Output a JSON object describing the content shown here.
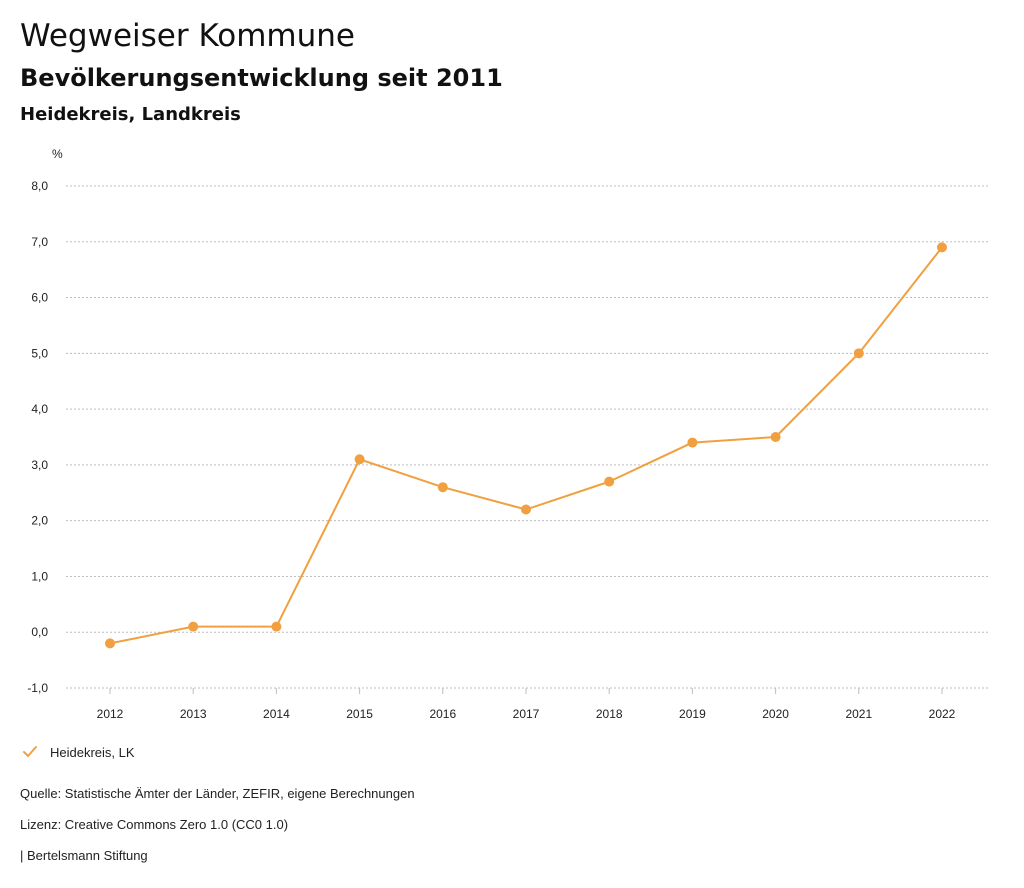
{
  "header": {
    "title": "Wegweiser Kommune",
    "subtitle": "Bevölkerungsentwicklung seit 2011",
    "region": "Heidekreis, Landkreis"
  },
  "chart_data": {
    "type": "line",
    "title": "Bevölkerungsentwicklung seit 2011",
    "xlabel": "",
    "ylabel": "%",
    "x": [
      "2012",
      "2013",
      "2014",
      "2015",
      "2016",
      "2017",
      "2018",
      "2019",
      "2020",
      "2021",
      "2022"
    ],
    "series": [
      {
        "name": "Heidekreis, LK",
        "color": "#f0a040",
        "values": [
          -0.2,
          0.1,
          0.1,
          3.1,
          2.6,
          2.2,
          2.7,
          3.4,
          3.5,
          5.0,
          6.9
        ]
      }
    ],
    "ylim": [
      -1.0,
      8.0
    ],
    "yticks": [
      -1.0,
      0.0,
      1.0,
      2.0,
      3.0,
      4.0,
      5.0,
      6.0,
      7.0,
      8.0
    ],
    "ytick_labels": [
      "-1,0",
      "0,0",
      "1,0",
      "2,0",
      "3,0",
      "4,0",
      "5,0",
      "6,0",
      "7,0",
      "8,0"
    ],
    "grid": true,
    "legend_position": "bottom-left"
  },
  "legend": {
    "label": "Heidekreis, LK",
    "icon": "check-icon"
  },
  "footer": {
    "source": "Quelle: Statistische Ämter der Länder, ZEFIR, eigene Berechnungen",
    "license": "Lizenz: Creative Commons Zero 1.0 (CC0 1.0)",
    "brand": "| Bertelsmann Stiftung"
  }
}
